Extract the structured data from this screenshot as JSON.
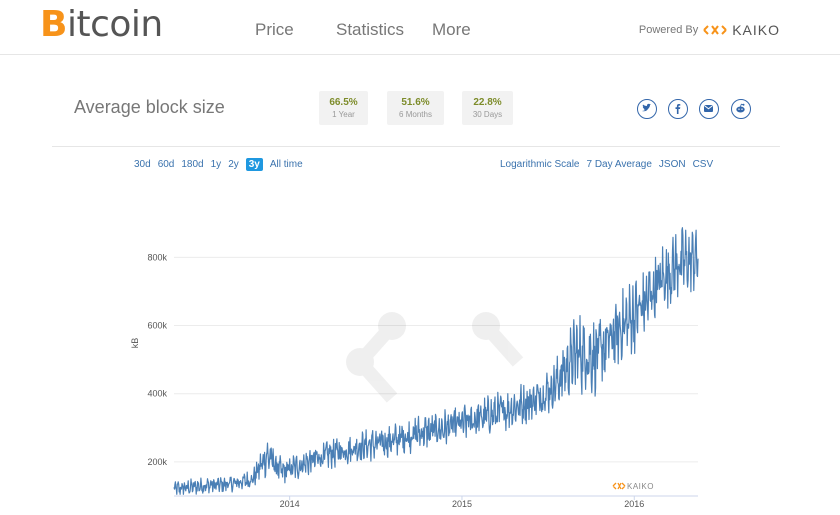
{
  "header": {
    "logo_first": "B",
    "logo_rest": "itcoin",
    "nav": [
      "Price",
      "Statistics",
      "More"
    ],
    "powered_by": "Powered By",
    "powered_brand": "KAIKO"
  },
  "page_title": "Average block size",
  "stats": [
    {
      "value": "66.5%",
      "label": "1 Year"
    },
    {
      "value": "51.6%",
      "label": "6 Months"
    },
    {
      "value": "22.8%",
      "label": "30 Days"
    }
  ],
  "share_icons": [
    "twitter-icon",
    "facebook-icon",
    "email-icon",
    "reddit-icon"
  ],
  "ranges": [
    "30d",
    "60d",
    "180d",
    "1y",
    "2y",
    "3y",
    "All time"
  ],
  "active_range": "3y",
  "options": [
    "Logarithmic Scale",
    "7 Day Average",
    "JSON",
    "CSV"
  ],
  "colors": {
    "line": "#4a7fb5",
    "accent": "#1f98e0",
    "bitcoin": "#f7931a",
    "stat_value": "#7d8c2a"
  },
  "chart_data": {
    "type": "line",
    "ylabel": "kB",
    "yticks": [
      "200k",
      "400k",
      "600k",
      "800k"
    ],
    "xticks": [
      "2014",
      "2015",
      "2016"
    ],
    "ylim": [
      100,
      980
    ],
    "xlim": [
      "2013-05-01",
      "2016-05-15"
    ],
    "watermark": "KAIKO",
    "series": [
      {
        "x": [
          "2013-05-01",
          "2013-07-01",
          "2013-09-01",
          "2013-10-15",
          "2013-11-15",
          "2013-12-15",
          "2014-02-01",
          "2014-04-01",
          "2014-06-01",
          "2014-08-01",
          "2014-10-01",
          "2014-12-01",
          "2015-02-01",
          "2015-04-01",
          "2015-06-01",
          "2015-07-15",
          "2015-09-01",
          "2015-10-15",
          "2015-12-01",
          "2016-01-15",
          "2016-03-01",
          "2016-04-01",
          "2016-05-15"
        ],
        "values": [
          120,
          130,
          135,
          150,
          220,
          170,
          195,
          225,
          245,
          260,
          285,
          300,
          325,
          350,
          380,
          420,
          520,
          510,
          590,
          650,
          740,
          780,
          800
        ],
        "amplitude": [
          35,
          35,
          35,
          40,
          90,
          55,
          60,
          65,
          65,
          70,
          75,
          80,
          80,
          85,
          90,
          100,
          170,
          160,
          150,
          160,
          150,
          150,
          140
        ]
      }
    ]
  }
}
